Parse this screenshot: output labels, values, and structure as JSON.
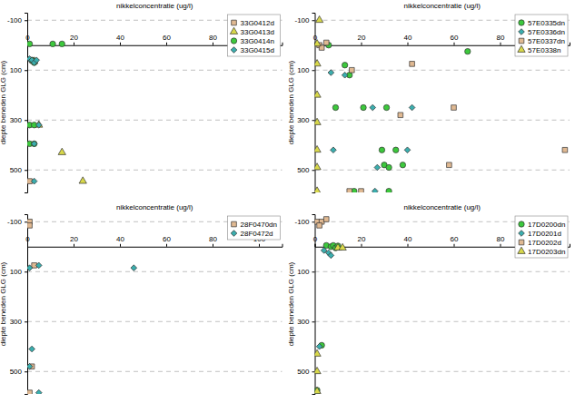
{
  "chart_data": [
    {
      "type": "scatter",
      "x_label": "nikkelconcentratie (ug/l)",
      "y_label": "diepte beneden GLG (cm)",
      "xlim": [
        0,
        110
      ],
      "ylim": [
        -130,
        590
      ],
      "xticks": [
        0,
        20,
        40,
        60,
        80,
        100
      ],
      "yticks": [
        -100,
        100,
        300,
        500
      ],
      "grid": true,
      "legend": "top-right",
      "series": [
        {
          "name": "33G0412d",
          "color": "#e0b992",
          "marker": "square",
          "x": [
            2,
            1
          ],
          "values": [
            60,
            545
          ]
        },
        {
          "name": "33G0413d",
          "color": "#d8d84a",
          "marker": "triangle",
          "x": [
            3,
            5,
            15,
            24
          ],
          "values": [
            65,
            320,
            430,
            545
          ]
        },
        {
          "name": "33G0414n",
          "color": "#3cc83c",
          "marker": "circle",
          "x": [
            1,
            15,
            11,
            2,
            3,
            1,
            3,
            1,
            3
          ],
          "values": [
            -5,
            -5,
            -5,
            60,
            70,
            320,
            320,
            395,
            395
          ]
        },
        {
          "name": "33G0415d",
          "color": "#3aaeae",
          "marker": "diamond",
          "x": [
            1,
            2,
            3,
            4,
            5,
            3,
            3
          ],
          "values": [
            55,
            60,
            70,
            60,
            320,
            395,
            545
          ]
        }
      ]
    },
    {
      "type": "scatter",
      "x_label": "nikkelconcentratie (ug/l)",
      "y_label": "diepte beneden GLG (cm)",
      "xlim": [
        0,
        110
      ],
      "ylim": [
        -130,
        590
      ],
      "xticks": [
        0,
        20,
        40,
        60,
        80,
        100
      ],
      "yticks": [
        -100,
        100,
        300,
        500
      ],
      "grid": true,
      "legend": "top-right",
      "series": [
        {
          "name": "57E0335dn",
          "color": "#3cc83c",
          "marker": "circle",
          "x": [
            6,
            66,
            13,
            15,
            9,
            21,
            31,
            29,
            35,
            38,
            30,
            32,
            17,
            32
          ],
          "values": [
            0,
            25,
            80,
            120,
            250,
            250,
            250,
            420,
            420,
            480,
            480,
            490,
            585,
            585
          ]
        },
        {
          "name": "57E0336dn",
          "color": "#3aaeae",
          "marker": "diamond",
          "x": [
            7,
            13,
            25,
            42,
            8,
            40,
            27,
            26
          ],
          "values": [
            110,
            120,
            250,
            250,
            420,
            420,
            490,
            585
          ]
        },
        {
          "name": "57E0337dn",
          "color": "#e0b992",
          "marker": "square",
          "x": [
            2,
            3,
            5,
            16,
            42,
            60,
            37,
            108,
            58,
            15,
            20
          ],
          "values": [
            0,
            10,
            -10,
            100,
            75,
            250,
            280,
            420,
            480,
            585,
            585
          ]
        },
        {
          "name": "57E0338n",
          "color": "#d8d84a",
          "marker": "triangle",
          "x": [
            2,
            1,
            1,
            1,
            1,
            1,
            1,
            1
          ],
          "values": [
            -100,
            -5,
            75,
            200,
            310,
            420,
            490,
            585
          ]
        }
      ]
    },
    {
      "type": "scatter",
      "x_label": "nikkelconcentratie (ug/l)",
      "y_label": "diepte beneden GLG (cm)",
      "xlim": [
        0,
        110
      ],
      "ylim": [
        -130,
        590
      ],
      "xticks": [
        0,
        20,
        40,
        60,
        80,
        100
      ],
      "yticks": [
        -100,
        100,
        300,
        500
      ],
      "grid": true,
      "legend": "top-right",
      "series": [
        {
          "name": "28F0470dn",
          "color": "#e0b992",
          "marker": "square",
          "x": [
            1,
            1,
            3,
            2,
            1
          ],
          "values": [
            -100,
            -85,
            75,
            480,
            585
          ]
        },
        {
          "name": "28F0472d",
          "color": "#3aaeae",
          "marker": "diamond",
          "x": [
            1,
            5,
            46,
            2,
            1,
            5
          ],
          "values": [
            85,
            75,
            85,
            410,
            480,
            585
          ]
        }
      ]
    },
    {
      "type": "scatter",
      "x_label": "nikkelconcentratie (ug/l)",
      "y_label": "diepte beneden GLG (cm)",
      "xlim": [
        0,
        110
      ],
      "ylim": [
        -130,
        590
      ],
      "xticks": [
        0,
        20,
        40,
        60,
        80,
        100
      ],
      "yticks": [
        -100,
        100,
        300,
        500
      ],
      "grid": true,
      "legend": "top-right",
      "series": [
        {
          "name": "17D0200dn",
          "color": "#3cc83c",
          "marker": "circle",
          "x": [
            5,
            7,
            8,
            9,
            10,
            3,
            1
          ],
          "values": [
            -5,
            0,
            -5,
            5,
            -3,
            395,
            575
          ]
        },
        {
          "name": "17D0201d",
          "color": "#3aaeae",
          "marker": "diamond",
          "x": [
            4,
            6,
            7,
            2,
            1
          ],
          "values": [
            15,
            25,
            35,
            400,
            585
          ]
        },
        {
          "name": "17D0202d",
          "color": "#e0b992",
          "marker": "square",
          "x": [
            1,
            3,
            5,
            2
          ],
          "values": [
            -100,
            -100,
            -110,
            -85
          ]
        },
        {
          "name": "17D0203dn",
          "color": "#d8d84a",
          "marker": "triangle",
          "x": [
            10,
            12,
            1,
            1,
            1
          ],
          "values": [
            5,
            5,
            430,
            500,
            580
          ]
        }
      ]
    }
  ]
}
